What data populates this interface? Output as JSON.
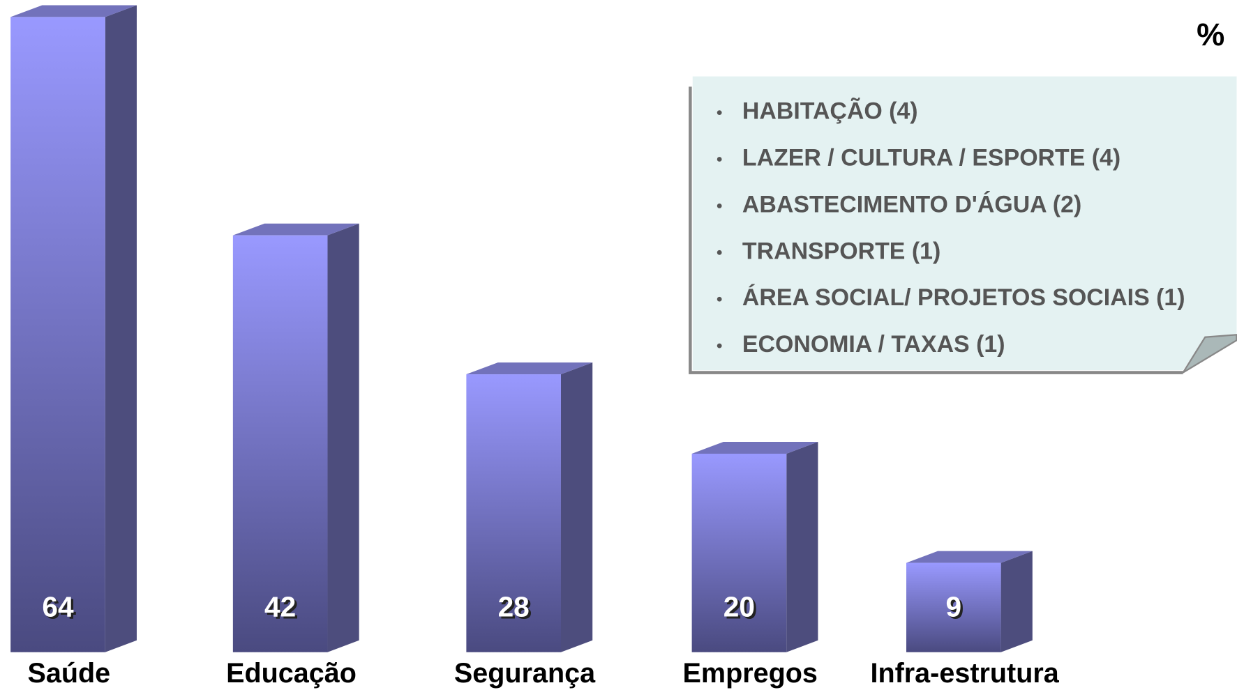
{
  "chart_data": {
    "type": "bar3d",
    "unit_label": "%",
    "categories": [
      "Saúde",
      "Educação",
      "Segurança",
      "Empregos",
      "Infra-estrutura"
    ],
    "values": [
      64,
      42,
      28,
      20,
      9
    ],
    "color": "#9999ff",
    "note_items": [
      "HABITAÇÃO (4)",
      "LAZER / CULTURA / ESPORTE (4)",
      "ABASTECIMENTO D'ÁGUA (2)",
      "TRANSPORTE (1)",
      "ÁREA SOCIAL/ PROJETOS SOCIAIS (1)",
      "ECONOMIA / TAXAS (1)"
    ]
  }
}
